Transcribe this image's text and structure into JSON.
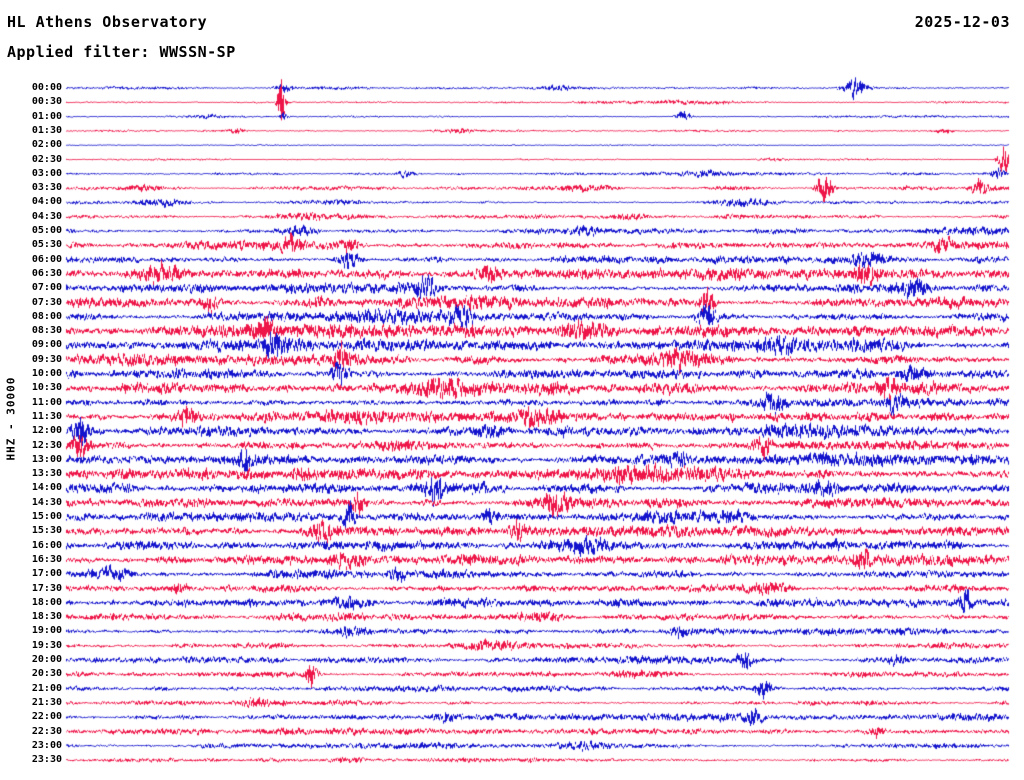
{
  "header": {
    "station_title": "HL Athens Observatory",
    "date": "2025-12-03",
    "filter_label": "Applied filter: WWSSN-SP"
  },
  "axis": {
    "y_left_label": "HHZ - 30000"
  },
  "chart_data": {
    "type": "line",
    "subtype": "helicorder-seismogram",
    "title": "HL Athens Observatory",
    "date": "2025-12-03",
    "filter": "WWSSN-SP",
    "channel": "HHZ",
    "scale": 30000,
    "row_duration_minutes": 30,
    "legend_position": "none",
    "grid": false,
    "colors": {
      "blue": "#1313cd",
      "red": "#ee1548"
    },
    "rows": [
      {
        "time": "00:00",
        "color": "blue",
        "amp": 1.8,
        "bursts": [
          {
            "x": 0.838,
            "w": 0.012,
            "g": 6
          },
          {
            "x": 0.23,
            "w": 0.01,
            "g": 2.5
          },
          {
            "x": 0.52,
            "w": 0.02,
            "g": 1.3
          }
        ]
      },
      {
        "time": "00:30",
        "color": "red",
        "amp": 1.5,
        "bursts": [
          {
            "x": 0.228,
            "w": 0.004,
            "g": 22
          },
          {
            "x": 0.66,
            "w": 0.04,
            "g": 1.5
          }
        ]
      },
      {
        "time": "01:00",
        "color": "blue",
        "amp": 1.4,
        "bursts": [
          {
            "x": 0.655,
            "w": 0.008,
            "g": 5
          },
          {
            "x": 0.23,
            "w": 0.004,
            "g": 3
          },
          {
            "x": 0.15,
            "w": 0.02,
            "g": 1.3
          }
        ]
      },
      {
        "time": "01:30",
        "color": "red",
        "amp": 1.4,
        "bursts": [
          {
            "x": 0.18,
            "w": 0.01,
            "g": 2
          },
          {
            "x": 0.42,
            "w": 0.01,
            "g": 1.6
          },
          {
            "x": 0.93,
            "w": 0.01,
            "g": 1.6
          }
        ]
      },
      {
        "time": "02:00",
        "color": "blue",
        "amp": 0.9,
        "bursts": []
      },
      {
        "time": "02:30",
        "color": "red",
        "amp": 1.2,
        "bursts": [
          {
            "x": 0.995,
            "w": 0.006,
            "g": 15
          },
          {
            "x": 0.75,
            "w": 0.015,
            "g": 1.5
          }
        ]
      },
      {
        "time": "03:00",
        "color": "blue",
        "amp": 2.2,
        "bursts": [
          {
            "x": 0.36,
            "w": 0.01,
            "g": 2
          },
          {
            "x": 0.68,
            "w": 0.02,
            "g": 1.4
          },
          {
            "x": 0.99,
            "w": 0.006,
            "g": 3.8
          }
        ]
      },
      {
        "time": "03:30",
        "color": "red",
        "amp": 2.8,
        "bursts": [
          {
            "x": 0.805,
            "w": 0.008,
            "g": 6
          },
          {
            "x": 0.97,
            "w": 0.008,
            "g": 3
          },
          {
            "x": 0.08,
            "w": 0.02,
            "g": 1.5
          },
          {
            "x": 0.55,
            "w": 0.03,
            "g": 1.2
          }
        ]
      },
      {
        "time": "04:00",
        "color": "blue",
        "amp": 2.8,
        "bursts": [
          {
            "x": 0.1,
            "w": 0.02,
            "g": 1.4
          },
          {
            "x": 0.72,
            "w": 0.03,
            "g": 1.3
          }
        ]
      },
      {
        "time": "04:30",
        "color": "red",
        "amp": 3.0,
        "bursts": [
          {
            "x": 0.6,
            "w": 0.02,
            "g": 1.3
          },
          {
            "x": 0.25,
            "w": 0.02,
            "g": 1.2
          }
        ]
      },
      {
        "time": "05:00",
        "color": "blue",
        "amp": 3.8,
        "bursts": [
          {
            "x": 0.25,
            "w": 0.015,
            "g": 1.4
          },
          {
            "x": 0.55,
            "w": 0.02,
            "g": 1.2
          }
        ]
      },
      {
        "time": "05:30",
        "color": "red",
        "amp": 5.0,
        "bursts": [
          {
            "x": 0.24,
            "w": 0.01,
            "g": 2
          },
          {
            "x": 0.3,
            "w": 0.008,
            "g": 1.8
          },
          {
            "x": 0.93,
            "w": 0.01,
            "g": 1.5
          }
        ]
      },
      {
        "time": "06:00",
        "color": "blue",
        "amp": 5.5,
        "bursts": [
          {
            "x": 0.3,
            "w": 0.01,
            "g": 1.6
          },
          {
            "x": 0.85,
            "w": 0.02,
            "g": 1.3
          }
        ]
      },
      {
        "time": "06:30",
        "color": "red",
        "amp": 6.5,
        "bursts": [
          {
            "x": 0.1,
            "w": 0.02,
            "g": 1.3
          },
          {
            "x": 0.45,
            "w": 0.01,
            "g": 1.5
          },
          {
            "x": 0.85,
            "w": 0.01,
            "g": 1.6
          }
        ]
      },
      {
        "time": "07:00",
        "color": "blue",
        "amp": 6.5,
        "bursts": [
          {
            "x": 0.38,
            "w": 0.01,
            "g": 1.5
          },
          {
            "x": 0.9,
            "w": 0.01,
            "g": 1.4
          }
        ]
      },
      {
        "time": "07:30",
        "color": "red",
        "amp": 6.5,
        "bursts": [
          {
            "x": 0.68,
            "w": 0.008,
            "g": 2.8
          },
          {
            "x": 0.15,
            "w": 0.01,
            "g": 1.5
          }
        ]
      },
      {
        "time": "08:00",
        "color": "blue",
        "amp": 6.5,
        "bursts": [
          {
            "x": 0.68,
            "w": 0.01,
            "g": 2.2
          },
          {
            "x": 0.42,
            "w": 0.01,
            "g": 1.4
          }
        ]
      },
      {
        "time": "08:30",
        "color": "red",
        "amp": 6.5,
        "bursts": [
          {
            "x": 0.21,
            "w": 0.008,
            "g": 2.5
          },
          {
            "x": 0.55,
            "w": 0.03,
            "g": 1.2
          }
        ]
      },
      {
        "time": "09:00",
        "color": "blue",
        "amp": 6.5,
        "bursts": [
          {
            "x": 0.22,
            "w": 0.01,
            "g": 1.8
          },
          {
            "x": 0.75,
            "w": 0.02,
            "g": 1.2
          }
        ]
      },
      {
        "time": "09:30",
        "color": "red",
        "amp": 6.5,
        "bursts": [
          {
            "x": 0.29,
            "w": 0.006,
            "g": 2.2
          },
          {
            "x": 0.65,
            "w": 0.02,
            "g": 1.2
          }
        ]
      },
      {
        "time": "10:00",
        "color": "blue",
        "amp": 6.5,
        "bursts": [
          {
            "x": 0.29,
            "w": 0.008,
            "g": 2
          },
          {
            "x": 0.9,
            "w": 0.015,
            "g": 1.3
          }
        ]
      },
      {
        "time": "10:30",
        "color": "red",
        "amp": 6.5,
        "bursts": [
          {
            "x": 0.87,
            "w": 0.008,
            "g": 1.8
          },
          {
            "x": 0.4,
            "w": 0.03,
            "g": 1.2
          }
        ]
      },
      {
        "time": "11:00",
        "color": "blue",
        "amp": 7.0,
        "bursts": [
          {
            "x": 0.75,
            "w": 0.01,
            "g": 1.5
          },
          {
            "x": 0.88,
            "w": 0.01,
            "g": 1.5
          }
        ]
      },
      {
        "time": "11:30",
        "color": "red",
        "amp": 7.0,
        "bursts": [
          {
            "x": 0.13,
            "w": 0.01,
            "g": 1.5
          },
          {
            "x": 0.5,
            "w": 0.03,
            "g": 1.2
          }
        ]
      },
      {
        "time": "12:00",
        "color": "blue",
        "amp": 7.0,
        "bursts": [
          {
            "x": 0.015,
            "w": 0.008,
            "g": 2.4
          },
          {
            "x": 0.45,
            "w": 0.02,
            "g": 1.2
          }
        ]
      },
      {
        "time": "12:30",
        "color": "red",
        "amp": 7.0,
        "bursts": [
          {
            "x": 0.015,
            "w": 0.008,
            "g": 2.2
          },
          {
            "x": 0.74,
            "w": 0.01,
            "g": 1.4
          }
        ]
      },
      {
        "time": "13:00",
        "color": "blue",
        "amp": 7.0,
        "bursts": [
          {
            "x": 0.19,
            "w": 0.008,
            "g": 1.8
          },
          {
            "x": 0.65,
            "w": 0.01,
            "g": 1.5
          }
        ]
      },
      {
        "time": "13:30",
        "color": "red",
        "amp": 6.5,
        "bursts": [
          {
            "x": 0.25,
            "w": 0.01,
            "g": 1.4
          },
          {
            "x": 0.6,
            "w": 0.03,
            "g": 1.2
          }
        ]
      },
      {
        "time": "14:00",
        "color": "blue",
        "amp": 6.5,
        "bursts": [
          {
            "x": 0.39,
            "w": 0.008,
            "g": 1.8
          },
          {
            "x": 0.8,
            "w": 0.02,
            "g": 1.2
          }
        ]
      },
      {
        "time": "14:30",
        "color": "red",
        "amp": 6.5,
        "bursts": [
          {
            "x": 0.31,
            "w": 0.006,
            "g": 2.8
          },
          {
            "x": 0.52,
            "w": 0.01,
            "g": 1.4
          }
        ]
      },
      {
        "time": "15:00",
        "color": "blue",
        "amp": 6.5,
        "bursts": [
          {
            "x": 0.3,
            "w": 0.006,
            "g": 2.8
          },
          {
            "x": 0.45,
            "w": 0.01,
            "g": 1.4
          }
        ]
      },
      {
        "time": "15:30",
        "color": "red",
        "amp": 6.5,
        "bursts": [
          {
            "x": 0.48,
            "w": 0.008,
            "g": 1.8
          },
          {
            "x": 0.27,
            "w": 0.01,
            "g": 1.4
          }
        ]
      },
      {
        "time": "16:00",
        "color": "blue",
        "amp": 6.0,
        "bursts": [
          {
            "x": 0.55,
            "w": 0.03,
            "g": 1.2
          }
        ]
      },
      {
        "time": "16:30",
        "color": "red",
        "amp": 6.0,
        "bursts": [
          {
            "x": 0.845,
            "w": 0.008,
            "g": 2.4
          },
          {
            "x": 0.3,
            "w": 0.02,
            "g": 1.2
          }
        ]
      },
      {
        "time": "17:00",
        "color": "blue",
        "amp": 5.5,
        "bursts": [
          {
            "x": 0.05,
            "w": 0.02,
            "g": 1.4
          },
          {
            "x": 0.35,
            "w": 0.01,
            "g": 1.3
          }
        ]
      },
      {
        "time": "17:30",
        "color": "red",
        "amp": 5.5,
        "bursts": [
          {
            "x": 0.12,
            "w": 0.01,
            "g": 1.4
          },
          {
            "x": 0.75,
            "w": 0.02,
            "g": 1.2
          }
        ]
      },
      {
        "time": "18:00",
        "color": "blue",
        "amp": 5.5,
        "bursts": [
          {
            "x": 0.955,
            "w": 0.008,
            "g": 2.6
          },
          {
            "x": 0.3,
            "w": 0.02,
            "g": 1.2
          }
        ]
      },
      {
        "time": "18:30",
        "color": "red",
        "amp": 5.0,
        "bursts": [
          {
            "x": 0.5,
            "w": 0.03,
            "g": 1.2
          }
        ]
      },
      {
        "time": "19:00",
        "color": "blue",
        "amp": 4.8,
        "bursts": [
          {
            "x": 0.3,
            "w": 0.02,
            "g": 1.2
          },
          {
            "x": 0.65,
            "w": 0.01,
            "g": 1.3
          }
        ]
      },
      {
        "time": "19:30",
        "color": "red",
        "amp": 4.2,
        "bursts": [
          {
            "x": 0.45,
            "w": 0.03,
            "g": 1.2
          }
        ]
      },
      {
        "time": "20:00",
        "color": "blue",
        "amp": 4.0,
        "bursts": [
          {
            "x": 0.72,
            "w": 0.008,
            "g": 3
          },
          {
            "x": 0.88,
            "w": 0.01,
            "g": 1.4
          }
        ]
      },
      {
        "time": "20:30",
        "color": "red",
        "amp": 4.0,
        "bursts": [
          {
            "x": 0.26,
            "w": 0.006,
            "g": 4.3
          },
          {
            "x": 0.6,
            "w": 0.03,
            "g": 1.2
          }
        ]
      },
      {
        "time": "21:00",
        "color": "blue",
        "amp": 4.0,
        "bursts": [
          {
            "x": 0.74,
            "w": 0.008,
            "g": 3
          }
        ]
      },
      {
        "time": "21:30",
        "color": "red",
        "amp": 3.6,
        "bursts": [
          {
            "x": 0.2,
            "w": 0.02,
            "g": 1.2
          }
        ]
      },
      {
        "time": "22:00",
        "color": "blue",
        "amp": 3.6,
        "bursts": [
          {
            "x": 0.73,
            "w": 0.008,
            "g": 3.6
          },
          {
            "x": 0.4,
            "w": 0.01,
            "g": 1.3
          }
        ]
      },
      {
        "time": "22:30",
        "color": "red",
        "amp": 3.4,
        "bursts": [
          {
            "x": 0.86,
            "w": 0.008,
            "g": 1.8
          }
        ]
      },
      {
        "time": "23:00",
        "color": "blue",
        "amp": 3.0,
        "bursts": [
          {
            "x": 0.55,
            "w": 0.03,
            "g": 1.2
          }
        ]
      },
      {
        "time": "23:30",
        "color": "red",
        "amp": 2.4,
        "bursts": [
          {
            "x": 0.3,
            "w": 0.02,
            "g": 1.2
          }
        ]
      }
    ]
  }
}
